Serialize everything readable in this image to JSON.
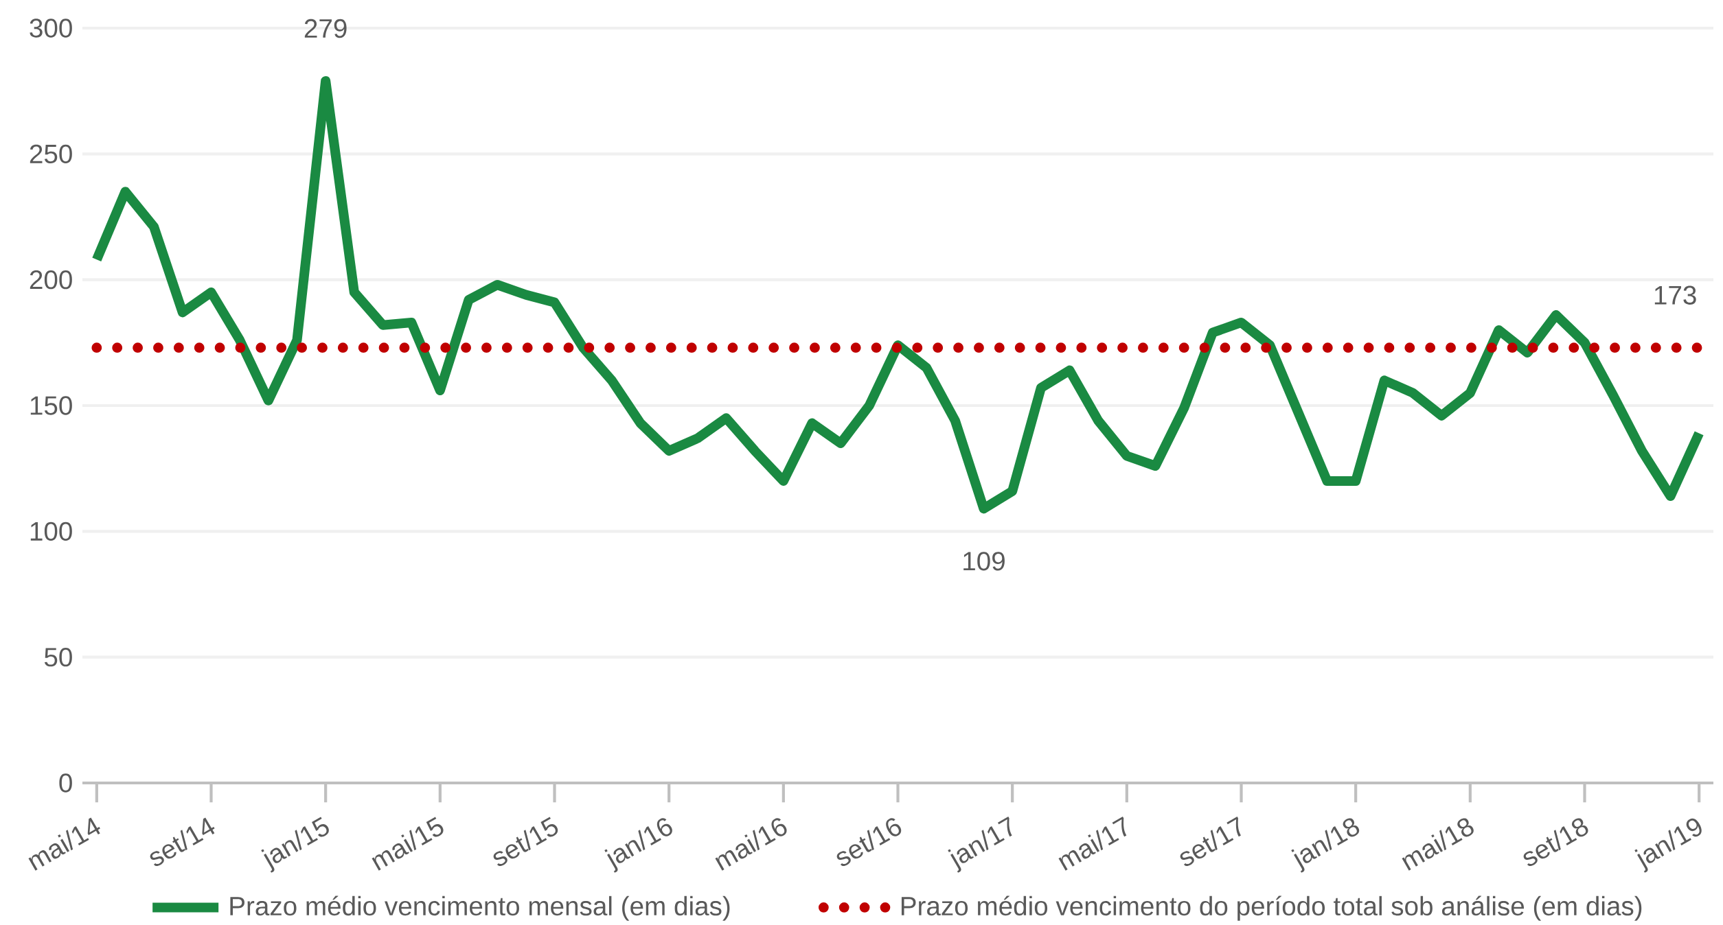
{
  "chart_data": {
    "type": "line",
    "categories": [
      "mai/14",
      null,
      null,
      null,
      "set/14",
      null,
      null,
      null,
      "jan/15",
      null,
      null,
      null,
      "mai/15",
      null,
      null,
      null,
      "set/15",
      null,
      null,
      null,
      "jan/16",
      null,
      null,
      null,
      "mai/16",
      null,
      null,
      null,
      "set/16",
      null,
      null,
      null,
      "jan/17",
      null,
      null,
      null,
      "mai/17",
      null,
      null,
      null,
      "set/17",
      null,
      null,
      null,
      "jan/18",
      null,
      null,
      null,
      "mai/18",
      null,
      null,
      null,
      "set/18",
      null,
      null,
      null,
      "jan/19"
    ],
    "series": [
      {
        "name": "Prazo médio vencimento mensal (em dias)",
        "color": "#1a8a42",
        "line_style": "solid",
        "values": [
          208,
          235,
          221,
          187,
          195,
          176,
          152,
          176,
          279,
          195,
          182,
          183,
          156,
          192,
          198,
          194,
          191,
          173,
          160,
          143,
          132,
          137,
          145,
          132,
          120,
          143,
          135,
          150,
          174,
          165,
          144,
          109,
          116,
          157,
          164,
          144,
          130,
          126,
          149,
          179,
          183,
          174,
          147,
          120,
          120,
          160,
          155,
          146,
          155,
          180,
          171,
          186,
          175,
          154,
          132,
          114,
          139
        ],
        "value_labels": [
          null,
          null,
          null,
          null,
          null,
          null,
          null,
          null,
          "279",
          null,
          null,
          null,
          null,
          null,
          null,
          null,
          null,
          null,
          null,
          null,
          null,
          null,
          null,
          null,
          null,
          null,
          null,
          null,
          null,
          null,
          null,
          "109",
          null,
          null,
          null,
          null,
          null,
          null,
          null,
          null,
          null,
          null,
          null,
          null,
          null,
          null,
          null,
          null,
          null,
          null,
          null,
          null,
          null,
          null,
          null,
          null,
          null
        ]
      },
      {
        "name": "Prazo médio vencimento do período total sob análise (em dias)",
        "color": "#c00000",
        "line_style": "dotted",
        "values": [
          173,
          173,
          173,
          173,
          173,
          173,
          173,
          173,
          173,
          173,
          173,
          173,
          173,
          173,
          173,
          173,
          173,
          173,
          173,
          173,
          173,
          173,
          173,
          173,
          173,
          173,
          173,
          173,
          173,
          173,
          173,
          173,
          173,
          173,
          173,
          173,
          173,
          173,
          173,
          173,
          173,
          173,
          173,
          173,
          173,
          173,
          173,
          173,
          173,
          173,
          173,
          173,
          173,
          173,
          173,
          173,
          173
        ],
        "value_labels": [
          null,
          null,
          null,
          null,
          null,
          null,
          null,
          null,
          null,
          null,
          null,
          null,
          null,
          null,
          null,
          null,
          null,
          null,
          null,
          null,
          null,
          null,
          null,
          null,
          null,
          null,
          null,
          null,
          null,
          null,
          null,
          null,
          null,
          null,
          null,
          null,
          null,
          null,
          null,
          null,
          null,
          null,
          null,
          null,
          null,
          null,
          null,
          null,
          null,
          null,
          null,
          null,
          null,
          null,
          null,
          null,
          "173"
        ]
      }
    ],
    "ylim": [
      0,
      300
    ],
    "yticks": [
      0,
      50,
      100,
      150,
      200,
      250,
      300
    ],
    "grid": "y",
    "legend": "bottom"
  }
}
